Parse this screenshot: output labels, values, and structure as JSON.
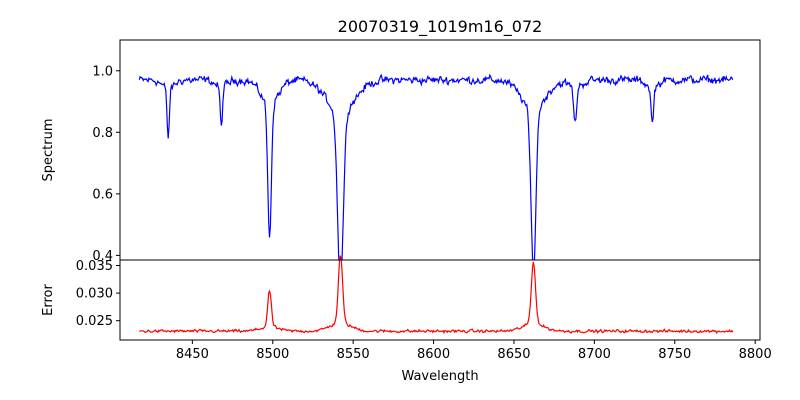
{
  "chart_data": [
    {
      "panel": "top",
      "type": "line",
      "title": "20070319_1019m16_072",
      "ylabel": "Spectrum",
      "xlim": [
        8405,
        8803
      ],
      "ylim": [
        0.385,
        1.1
      ],
      "yticks": [
        0.4,
        0.6,
        0.8,
        1.0
      ],
      "yticklabels": [
        "0.4",
        "0.6",
        "0.8",
        "1.0"
      ],
      "series": [
        {
          "color": "#0000ff",
          "continuum": 0.97,
          "noise": 0.032,
          "x_range": [
            8417,
            8786
          ],
          "absorption_lines": [
            {
              "center": 8435,
              "depth": 0.16,
              "width": 0.7
            },
            {
              "center": 8468,
              "depth": 0.13,
              "width": 0.7
            },
            {
              "center": 8498.0,
              "depth": 0.43,
              "width": 1.1
            },
            {
              "center": 8542.1,
              "depth": 0.56,
              "width": 1.8
            },
            {
              "center": 8662.1,
              "depth": 0.53,
              "width": 1.5
            },
            {
              "center": 8688,
              "depth": 0.12,
              "width": 0.9
            },
            {
              "center": 8736,
              "depth": 0.12,
              "width": 0.8
            }
          ]
        }
      ]
    },
    {
      "panel": "bottom",
      "type": "line",
      "xlabel": "Wavelength",
      "ylabel": "Error",
      "xlim": [
        8405,
        8803
      ],
      "ylim": [
        0.0215,
        0.036
      ],
      "xticks": [
        8400,
        8450,
        8500,
        8550,
        8600,
        8650,
        8700,
        8750,
        8800
      ],
      "xticklabels": [
        "8400",
        "8450",
        "8500",
        "8550",
        "8600",
        "8650",
        "8700",
        "8750",
        "8800"
      ],
      "yticks": [
        0.025,
        0.03,
        0.035
      ],
      "yticklabels": [
        "0.025",
        "0.030",
        "0.035"
      ],
      "series": [
        {
          "color": "#ff0000",
          "baseline": 0.0231,
          "noise": 0.0006,
          "x_range": [
            8417,
            8786
          ],
          "emission_peaks": [
            {
              "center": 8498.0,
              "height": 0.0065,
              "width": 1.1
            },
            {
              "center": 8542.1,
              "height": 0.0123,
              "width": 1.3
            },
            {
              "center": 8662.1,
              "height": 0.0112,
              "width": 1.3
            }
          ]
        }
      ]
    }
  ]
}
